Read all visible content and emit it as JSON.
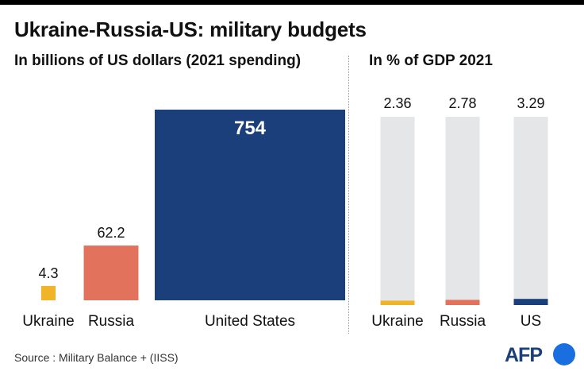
{
  "title": "Ukraine-Russia-US: military budgets",
  "source": "Source : Military Balance + (IISS)",
  "logo_text": "AFP",
  "chart_data": [
    {
      "type": "bar",
      "title": "In billions of US dollars (2021 spending)",
      "categories": [
        "Ukraine",
        "Russia",
        "United States"
      ],
      "values": [
        4.3,
        62.2,
        754
      ],
      "value_labels": [
        "4.3",
        "62.2",
        "754"
      ],
      "colors": [
        "#f0b429",
        "#e2725b",
        "#1b3f7a"
      ],
      "encoding": "area"
    },
    {
      "type": "bar",
      "title": "In % of GDP 2021",
      "categories": [
        "Ukraine",
        "Russia",
        "US"
      ],
      "values": [
        2.36,
        2.78,
        3.29
      ],
      "value_labels": [
        "2.36",
        "2.78",
        "3.29"
      ],
      "colors": [
        "#f0b429",
        "#e2725b",
        "#1b3f7a"
      ],
      "track_color": "#e4e6e7",
      "ylim": [
        0,
        100
      ]
    }
  ]
}
